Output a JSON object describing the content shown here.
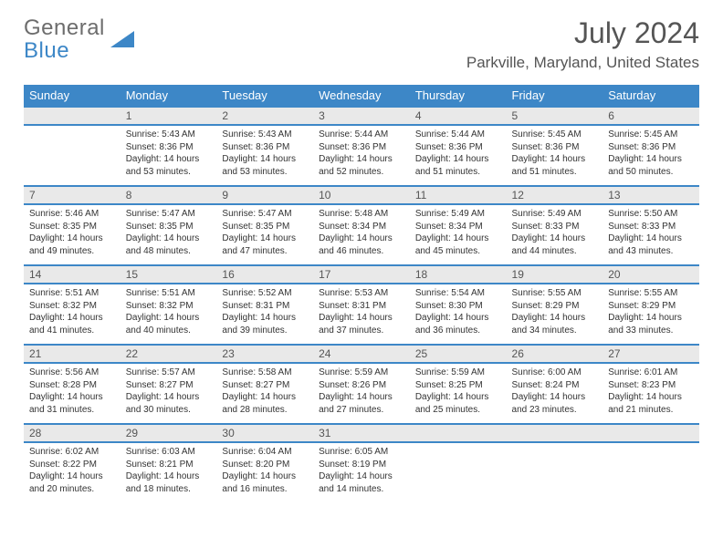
{
  "brand": {
    "line1": "General",
    "line2": "Blue"
  },
  "title": {
    "month": "July 2024",
    "location": "Parkville, Maryland, United States"
  },
  "colors": {
    "header_bg": "#3d87c7",
    "header_text": "#ffffff",
    "daynum_bg": "#e9e9e9",
    "text": "#333333",
    "rule": "#3d87c7"
  },
  "dayHeaders": [
    "Sunday",
    "Monday",
    "Tuesday",
    "Wednesday",
    "Thursday",
    "Friday",
    "Saturday"
  ],
  "weeks": [
    {
      "nums": [
        "",
        "1",
        "2",
        "3",
        "4",
        "5",
        "6"
      ],
      "cells": [
        null,
        {
          "sr": "Sunrise: 5:43 AM",
          "ss": "Sunset: 8:36 PM",
          "d1": "Daylight: 14 hours",
          "d2": "and 53 minutes."
        },
        {
          "sr": "Sunrise: 5:43 AM",
          "ss": "Sunset: 8:36 PM",
          "d1": "Daylight: 14 hours",
          "d2": "and 53 minutes."
        },
        {
          "sr": "Sunrise: 5:44 AM",
          "ss": "Sunset: 8:36 PM",
          "d1": "Daylight: 14 hours",
          "d2": "and 52 minutes."
        },
        {
          "sr": "Sunrise: 5:44 AM",
          "ss": "Sunset: 8:36 PM",
          "d1": "Daylight: 14 hours",
          "d2": "and 51 minutes."
        },
        {
          "sr": "Sunrise: 5:45 AM",
          "ss": "Sunset: 8:36 PM",
          "d1": "Daylight: 14 hours",
          "d2": "and 51 minutes."
        },
        {
          "sr": "Sunrise: 5:45 AM",
          "ss": "Sunset: 8:36 PM",
          "d1": "Daylight: 14 hours",
          "d2": "and 50 minutes."
        }
      ]
    },
    {
      "nums": [
        "7",
        "8",
        "9",
        "10",
        "11",
        "12",
        "13"
      ],
      "cells": [
        {
          "sr": "Sunrise: 5:46 AM",
          "ss": "Sunset: 8:35 PM",
          "d1": "Daylight: 14 hours",
          "d2": "and 49 minutes."
        },
        {
          "sr": "Sunrise: 5:47 AM",
          "ss": "Sunset: 8:35 PM",
          "d1": "Daylight: 14 hours",
          "d2": "and 48 minutes."
        },
        {
          "sr": "Sunrise: 5:47 AM",
          "ss": "Sunset: 8:35 PM",
          "d1": "Daylight: 14 hours",
          "d2": "and 47 minutes."
        },
        {
          "sr": "Sunrise: 5:48 AM",
          "ss": "Sunset: 8:34 PM",
          "d1": "Daylight: 14 hours",
          "d2": "and 46 minutes."
        },
        {
          "sr": "Sunrise: 5:49 AM",
          "ss": "Sunset: 8:34 PM",
          "d1": "Daylight: 14 hours",
          "d2": "and 45 minutes."
        },
        {
          "sr": "Sunrise: 5:49 AM",
          "ss": "Sunset: 8:33 PM",
          "d1": "Daylight: 14 hours",
          "d2": "and 44 minutes."
        },
        {
          "sr": "Sunrise: 5:50 AM",
          "ss": "Sunset: 8:33 PM",
          "d1": "Daylight: 14 hours",
          "d2": "and 43 minutes."
        }
      ]
    },
    {
      "nums": [
        "14",
        "15",
        "16",
        "17",
        "18",
        "19",
        "20"
      ],
      "cells": [
        {
          "sr": "Sunrise: 5:51 AM",
          "ss": "Sunset: 8:32 PM",
          "d1": "Daylight: 14 hours",
          "d2": "and 41 minutes."
        },
        {
          "sr": "Sunrise: 5:51 AM",
          "ss": "Sunset: 8:32 PM",
          "d1": "Daylight: 14 hours",
          "d2": "and 40 minutes."
        },
        {
          "sr": "Sunrise: 5:52 AM",
          "ss": "Sunset: 8:31 PM",
          "d1": "Daylight: 14 hours",
          "d2": "and 39 minutes."
        },
        {
          "sr": "Sunrise: 5:53 AM",
          "ss": "Sunset: 8:31 PM",
          "d1": "Daylight: 14 hours",
          "d2": "and 37 minutes."
        },
        {
          "sr": "Sunrise: 5:54 AM",
          "ss": "Sunset: 8:30 PM",
          "d1": "Daylight: 14 hours",
          "d2": "and 36 minutes."
        },
        {
          "sr": "Sunrise: 5:55 AM",
          "ss": "Sunset: 8:29 PM",
          "d1": "Daylight: 14 hours",
          "d2": "and 34 minutes."
        },
        {
          "sr": "Sunrise: 5:55 AM",
          "ss": "Sunset: 8:29 PM",
          "d1": "Daylight: 14 hours",
          "d2": "and 33 minutes."
        }
      ]
    },
    {
      "nums": [
        "21",
        "22",
        "23",
        "24",
        "25",
        "26",
        "27"
      ],
      "cells": [
        {
          "sr": "Sunrise: 5:56 AM",
          "ss": "Sunset: 8:28 PM",
          "d1": "Daylight: 14 hours",
          "d2": "and 31 minutes."
        },
        {
          "sr": "Sunrise: 5:57 AM",
          "ss": "Sunset: 8:27 PM",
          "d1": "Daylight: 14 hours",
          "d2": "and 30 minutes."
        },
        {
          "sr": "Sunrise: 5:58 AM",
          "ss": "Sunset: 8:27 PM",
          "d1": "Daylight: 14 hours",
          "d2": "and 28 minutes."
        },
        {
          "sr": "Sunrise: 5:59 AM",
          "ss": "Sunset: 8:26 PM",
          "d1": "Daylight: 14 hours",
          "d2": "and 27 minutes."
        },
        {
          "sr": "Sunrise: 5:59 AM",
          "ss": "Sunset: 8:25 PM",
          "d1": "Daylight: 14 hours",
          "d2": "and 25 minutes."
        },
        {
          "sr": "Sunrise: 6:00 AM",
          "ss": "Sunset: 8:24 PM",
          "d1": "Daylight: 14 hours",
          "d2": "and 23 minutes."
        },
        {
          "sr": "Sunrise: 6:01 AM",
          "ss": "Sunset: 8:23 PM",
          "d1": "Daylight: 14 hours",
          "d2": "and 21 minutes."
        }
      ]
    },
    {
      "nums": [
        "28",
        "29",
        "30",
        "31",
        "",
        "",
        ""
      ],
      "cells": [
        {
          "sr": "Sunrise: 6:02 AM",
          "ss": "Sunset: 8:22 PM",
          "d1": "Daylight: 14 hours",
          "d2": "and 20 minutes."
        },
        {
          "sr": "Sunrise: 6:03 AM",
          "ss": "Sunset: 8:21 PM",
          "d1": "Daylight: 14 hours",
          "d2": "and 18 minutes."
        },
        {
          "sr": "Sunrise: 6:04 AM",
          "ss": "Sunset: 8:20 PM",
          "d1": "Daylight: 14 hours",
          "d2": "and 16 minutes."
        },
        {
          "sr": "Sunrise: 6:05 AM",
          "ss": "Sunset: 8:19 PM",
          "d1": "Daylight: 14 hours",
          "d2": "and 14 minutes."
        },
        null,
        null,
        null
      ]
    }
  ]
}
